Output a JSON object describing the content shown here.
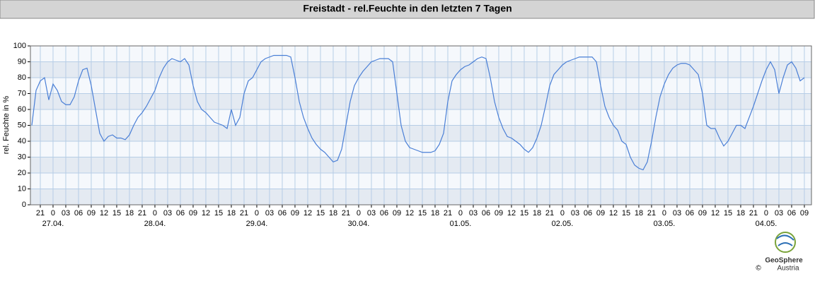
{
  "chart_data": {
    "type": "line",
    "title": "Freistadt - rel.Feuchte in den letzten 7 Tagen",
    "ylabel": "rel. Feuchte in %",
    "grid": true,
    "color": "#4a7fd6",
    "xlim": [
      -5.33,
      178.67
    ],
    "ylim": [
      0,
      100
    ],
    "yticks": [
      0,
      10,
      20,
      30,
      40,
      50,
      60,
      70,
      80,
      90,
      100
    ],
    "xticks": [
      {
        "value": -3,
        "label": "21"
      },
      {
        "value": 0,
        "label": "0"
      },
      {
        "value": 3,
        "label": "03"
      },
      {
        "value": 6,
        "label": "06"
      },
      {
        "value": 9,
        "label": "09"
      },
      {
        "value": 12,
        "label": "12"
      },
      {
        "value": 15,
        "label": "15"
      },
      {
        "value": 18,
        "label": "18"
      },
      {
        "value": 21,
        "label": "21"
      },
      {
        "value": 24,
        "label": "0"
      },
      {
        "value": 27,
        "label": "03"
      },
      {
        "value": 30,
        "label": "06"
      },
      {
        "value": 33,
        "label": "09"
      },
      {
        "value": 36,
        "label": "12"
      },
      {
        "value": 39,
        "label": "15"
      },
      {
        "value": 42,
        "label": "18"
      },
      {
        "value": 45,
        "label": "21"
      },
      {
        "value": 48,
        "label": "0"
      },
      {
        "value": 51,
        "label": "03"
      },
      {
        "value": 54,
        "label": "06"
      },
      {
        "value": 57,
        "label": "09"
      },
      {
        "value": 60,
        "label": "12"
      },
      {
        "value": 63,
        "label": "15"
      },
      {
        "value": 66,
        "label": "18"
      },
      {
        "value": 69,
        "label": "21"
      },
      {
        "value": 72,
        "label": "0"
      },
      {
        "value": 75,
        "label": "03"
      },
      {
        "value": 78,
        "label": "06"
      },
      {
        "value": 81,
        "label": "09"
      },
      {
        "value": 84,
        "label": "12"
      },
      {
        "value": 87,
        "label": "15"
      },
      {
        "value": 90,
        "label": "18"
      },
      {
        "value": 93,
        "label": "21"
      },
      {
        "value": 96,
        "label": "0"
      },
      {
        "value": 99,
        "label": "03"
      },
      {
        "value": 102,
        "label": "06"
      },
      {
        "value": 105,
        "label": "09"
      },
      {
        "value": 108,
        "label": "12"
      },
      {
        "value": 111,
        "label": "15"
      },
      {
        "value": 114,
        "label": "18"
      },
      {
        "value": 117,
        "label": "21"
      },
      {
        "value": 120,
        "label": "0"
      },
      {
        "value": 123,
        "label": "03"
      },
      {
        "value": 126,
        "label": "06"
      },
      {
        "value": 129,
        "label": "09"
      },
      {
        "value": 132,
        "label": "12"
      },
      {
        "value": 135,
        "label": "15"
      },
      {
        "value": 138,
        "label": "18"
      },
      {
        "value": 141,
        "label": "21"
      },
      {
        "value": 144,
        "label": "0"
      },
      {
        "value": 147,
        "label": "03"
      },
      {
        "value": 150,
        "label": "06"
      },
      {
        "value": 153,
        "label": "09"
      },
      {
        "value": 156,
        "label": "12"
      },
      {
        "value": 159,
        "label": "15"
      },
      {
        "value": 162,
        "label": "18"
      },
      {
        "value": 165,
        "label": "21"
      },
      {
        "value": 168,
        "label": "0"
      },
      {
        "value": 171,
        "label": "03"
      },
      {
        "value": 174,
        "label": "06"
      },
      {
        "value": 177,
        "label": "09"
      }
    ],
    "date_ticks": [
      {
        "value": 0,
        "label": "27.04."
      },
      {
        "value": 24,
        "label": "28.04."
      },
      {
        "value": 48,
        "label": "29.04."
      },
      {
        "value": 72,
        "label": "30.04."
      },
      {
        "value": 96,
        "label": "01.05."
      },
      {
        "value": 120,
        "label": "02.05."
      },
      {
        "value": 144,
        "label": "03.05."
      },
      {
        "value": 168,
        "label": "04.05."
      }
    ],
    "x": [
      -5,
      -4,
      -3,
      -2,
      -1,
      0,
      1,
      2,
      3,
      4,
      5,
      6,
      7,
      8,
      9,
      10,
      11,
      12,
      13,
      14,
      15,
      16,
      17,
      18,
      19,
      20,
      21,
      22,
      23,
      24,
      25,
      26,
      27,
      28,
      29,
      30,
      31,
      32,
      33,
      34,
      35,
      36,
      37,
      38,
      39,
      40,
      41,
      42,
      43,
      44,
      45,
      46,
      47,
      48,
      49,
      50,
      51,
      52,
      53,
      54,
      55,
      56,
      57,
      58,
      59,
      60,
      61,
      62,
      63,
      64,
      65,
      66,
      67,
      68,
      69,
      70,
      71,
      72,
      73,
      74,
      75,
      76,
      77,
      78,
      79,
      80,
      81,
      82,
      83,
      84,
      85,
      86,
      87,
      88,
      89,
      90,
      91,
      92,
      93,
      94,
      95,
      96,
      97,
      98,
      99,
      100,
      101,
      102,
      103,
      104,
      105,
      106,
      107,
      108,
      109,
      110,
      111,
      112,
      113,
      114,
      115,
      116,
      117,
      118,
      119,
      120,
      121,
      122,
      123,
      124,
      125,
      126,
      127,
      128,
      129,
      130,
      131,
      132,
      133,
      134,
      135,
      136,
      137,
      138,
      139,
      140,
      141,
      142,
      143,
      144,
      145,
      146,
      147,
      148,
      149,
      150,
      151,
      152,
      153,
      154,
      155,
      156,
      157,
      158,
      159,
      160,
      161,
      162,
      163,
      164,
      165,
      166,
      167,
      168,
      169,
      170,
      171,
      172,
      173,
      174,
      175,
      176,
      177
    ],
    "values": [
      50,
      72,
      78,
      80,
      66,
      76,
      72,
      65,
      63,
      63,
      68,
      78,
      85,
      86,
      75,
      60,
      45,
      40,
      43,
      44,
      42,
      42,
      41,
      44,
      50,
      55,
      58,
      62,
      67,
      72,
      80,
      86,
      90,
      92,
      91,
      90,
      92,
      88,
      75,
      65,
      60,
      58,
      55,
      52,
      51,
      50,
      48,
      60,
      50,
      55,
      70,
      78,
      80,
      85,
      90,
      92,
      93,
      94,
      94,
      94,
      94,
      93,
      80,
      65,
      55,
      48,
      42,
      38,
      35,
      33,
      30,
      27,
      28,
      35,
      50,
      65,
      75,
      80,
      84,
      87,
      90,
      91,
      92,
      92,
      92,
      90,
      70,
      50,
      40,
      36,
      35,
      34,
      33,
      33,
      33,
      34,
      38,
      45,
      65,
      78,
      82,
      85,
      87,
      88,
      90,
      92,
      93,
      92,
      80,
      65,
      55,
      48,
      43,
      42,
      40,
      38,
      35,
      33,
      36,
      42,
      50,
      62,
      75,
      82,
      85,
      88,
      90,
      91,
      92,
      93,
      93,
      93,
      93,
      90,
      75,
      62,
      55,
      50,
      47,
      40,
      38,
      30,
      25,
      23,
      22,
      27,
      40,
      55,
      68,
      76,
      82,
      86,
      88,
      89,
      89,
      88,
      85,
      82,
      70,
      50,
      48,
      48,
      42,
      37,
      40,
      45,
      50,
      50,
      48,
      55,
      62,
      70,
      78,
      85,
      90,
      85,
      70,
      80,
      88,
      90,
      86,
      78,
      80
    ],
    "logo": {
      "name": "GeoSphere",
      "sub": "Austria",
      "copyright": "©"
    }
  }
}
